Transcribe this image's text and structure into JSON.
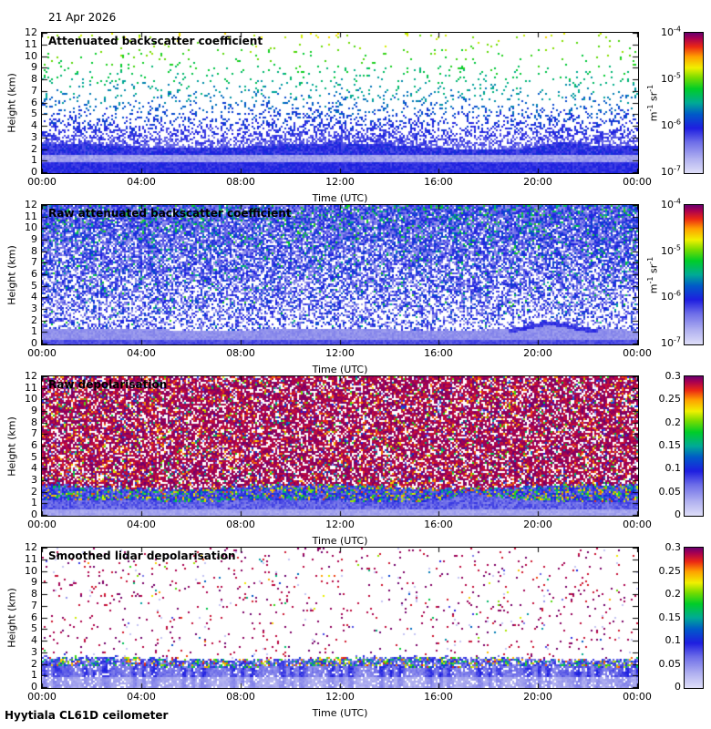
{
  "page": {
    "date_label": "21 Apr 2026",
    "footer": "Hyytiala CL61D ceilometer"
  },
  "chart_data": {
    "type": "heatmap",
    "date": "21 Apr 2026",
    "instrument": "Hyytiala CL61D ceilometer",
    "layout": "4 stacked time-height panels, each with its own colorbar on the right",
    "x": {
      "label": "Time (UTC)",
      "ticks": [
        "00:00",
        "04:00",
        "08:00",
        "12:00",
        "16:00",
        "20:00",
        "00:00"
      ],
      "range_hours": [
        0,
        24
      ]
    },
    "y": {
      "label": "Height (km)",
      "ticks": [
        "12",
        "11",
        "10",
        "9",
        "8",
        "7",
        "6",
        "5",
        "4",
        "3",
        "2",
        "1",
        "0"
      ],
      "range_km": [
        0,
        12
      ]
    },
    "colormap_stops": [
      [
        0.0,
        "#dedef8"
      ],
      [
        0.1,
        "#b2b2f0"
      ],
      [
        0.22,
        "#6e6ee8"
      ],
      [
        0.32,
        "#1e1ee0"
      ],
      [
        0.42,
        "#005ac8"
      ],
      [
        0.5,
        "#00aa96"
      ],
      [
        0.6,
        "#00cd28"
      ],
      [
        0.68,
        "#78dc00"
      ],
      [
        0.75,
        "#f0f000"
      ],
      [
        0.83,
        "#ffa000"
      ],
      [
        0.9,
        "#eb2814"
      ],
      [
        0.96,
        "#aa0050"
      ],
      [
        1.0,
        "#69006e"
      ]
    ],
    "panels": [
      {
        "title": "Attenuated backscatter coefficient",
        "render_kind": "sparse_backscatter",
        "colorbar": {
          "scale": "log",
          "unit": "m^-1 sr^-1",
          "tick_labels": [
            "10^-4",
            "10^-5",
            "10^-6",
            "10^-7"
          ],
          "range": [
            1e-07,
            0.0001
          ]
        },
        "features": {
          "surface_layer_top_km": 2.3,
          "light_lavender_band_km": [
            0.9,
            1.55
          ],
          "speckle": "sparse noise dots: blue near 3 km, green 6-10 km, yellow near 12 km",
          "evening_bump_time_frac": 0.87
        }
      },
      {
        "title": "Raw attenuated backscatter coefficient",
        "render_kind": "dense_backscatter",
        "colorbar": {
          "scale": "log",
          "unit": "m^-1 sr^-1",
          "tick_labels": [
            "10^-4",
            "10^-5",
            "10^-6",
            "10^-7"
          ],
          "range": [
            1e-07,
            0.0001
          ]
        },
        "features": {
          "surface_layer_top_km": 1.4,
          "noise": "dense blue speckle filling free troposphere, green dots increasing with height",
          "evening_bump_time_frac": 0.85
        }
      },
      {
        "title": "Raw depolarisation",
        "render_kind": "raw_depolarisation",
        "colorbar": {
          "scale": "linear",
          "unit": null,
          "tick_labels": [
            "0.3",
            "0.25",
            "0.2",
            "0.15",
            "0.1",
            "0.05",
            "0"
          ],
          "range": [
            0,
            0.3
          ]
        },
        "features": {
          "noise_floor_above_km": 2.6,
          "boundary_layer_km": 1.4,
          "noise": "dense purple (~0.3) speckle above 2.5 km, colourful mixed band 1.5-2.5 km, low blue values below"
        }
      },
      {
        "title": "Smoothed lidar depolarisation",
        "render_kind": "smooth_depolarisation",
        "colorbar": {
          "scale": "linear",
          "unit": null,
          "tick_labels": [
            "0.3",
            "0.25",
            "0.2",
            "0.15",
            "0.1",
            "0.05",
            "0"
          ],
          "range": [
            0,
            0.3
          ]
        },
        "features": {
          "aerosol_band_km": [
            1.9,
            2.6
          ],
          "noise": "mostly white above 3 km with sparse purple dots, colourful speckle band ~2-2.5 km, streaky blue wash below 2 km"
        }
      }
    ]
  }
}
